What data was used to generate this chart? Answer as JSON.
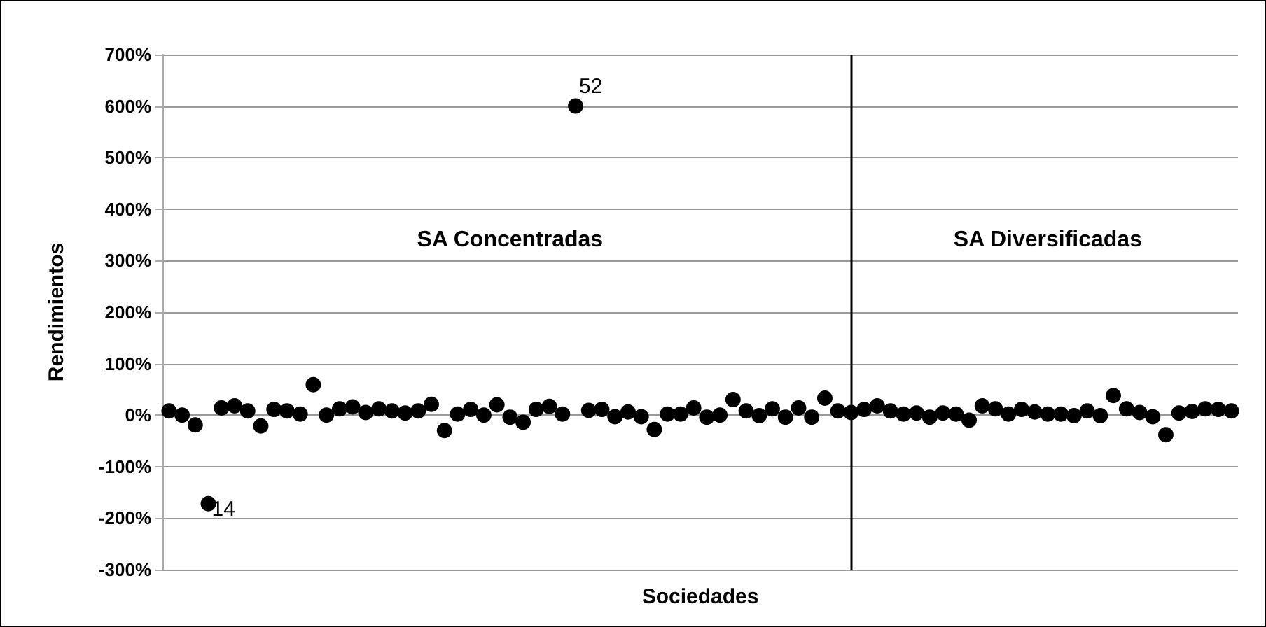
{
  "chart_data": {
    "type": "scatter",
    "xlabel": "Sociedades",
    "ylabel": "Rendimientos",
    "categories": [
      null,
      null,
      null,
      null,
      null,
      null,
      null,
      null,
      null,
      null,
      null,
      null,
      null,
      null,
      null,
      null,
      null,
      null,
      null,
      null,
      null,
      null,
      null,
      null,
      null,
      null,
      null,
      null,
      null,
      null,
      null,
      null,
      null,
      null,
      null,
      null,
      null,
      null,
      null,
      null,
      null,
      null,
      null,
      null,
      null,
      null,
      null,
      null,
      null,
      null,
      null,
      null,
      null,
      null,
      null,
      null,
      null,
      null,
      null,
      null,
      null,
      null,
      null,
      null,
      null,
      null,
      null,
      null,
      null,
      null,
      null,
      null,
      null,
      null,
      null,
      null,
      null,
      null,
      null,
      null,
      null,
      null
    ],
    "series": [
      {
        "color": "#000000",
        "values": [
          8,
          0,
          -19,
          -172,
          14,
          18,
          8,
          -21,
          11,
          8,
          2,
          59,
          0,
          12,
          16,
          5,
          12,
          8,
          4,
          8,
          21,
          -30,
          2,
          11,
          0,
          20,
          -4,
          -14,
          11,
          17,
          2,
          600,
          9,
          11,
          -3,
          6,
          -3,
          -28,
          2,
          2,
          14,
          -4,
          0,
          30,
          8,
          -1,
          12,
          -4,
          14,
          -4,
          33,
          8,
          5,
          11,
          18,
          8,
          2,
          4,
          -4,
          4,
          2,
          -10,
          18,
          12,
          2,
          11,
          6,
          2,
          2,
          -1,
          8,
          -1,
          38,
          12,
          5,
          -3,
          -38,
          4,
          7,
          12,
          11,
          8
        ]
      }
    ],
    "ylim": [
      -300,
      700
    ],
    "yticks": [
      {
        "value": -300,
        "label": "-300%"
      },
      {
        "value": -200,
        "label": "-200%"
      },
      {
        "value": -100,
        "label": "-100%"
      },
      {
        "value": 0,
        "label": "0%"
      },
      {
        "value": 100,
        "label": "100%"
      },
      {
        "value": 200,
        "label": "200%"
      },
      {
        "value": 300,
        "label": "300%"
      },
      {
        "value": 400,
        "label": "400%"
      },
      {
        "value": 500,
        "label": "500%"
      },
      {
        "value": 600,
        "label": "600%"
      },
      {
        "value": 700,
        "label": "700%"
      }
    ],
    "grid": "y",
    "marker": "circle",
    "tick_labels": "y",
    "annotations": [
      "SA Concentradas",
      "SA Diversificadas",
      "14",
      "52"
    ]
  }
}
